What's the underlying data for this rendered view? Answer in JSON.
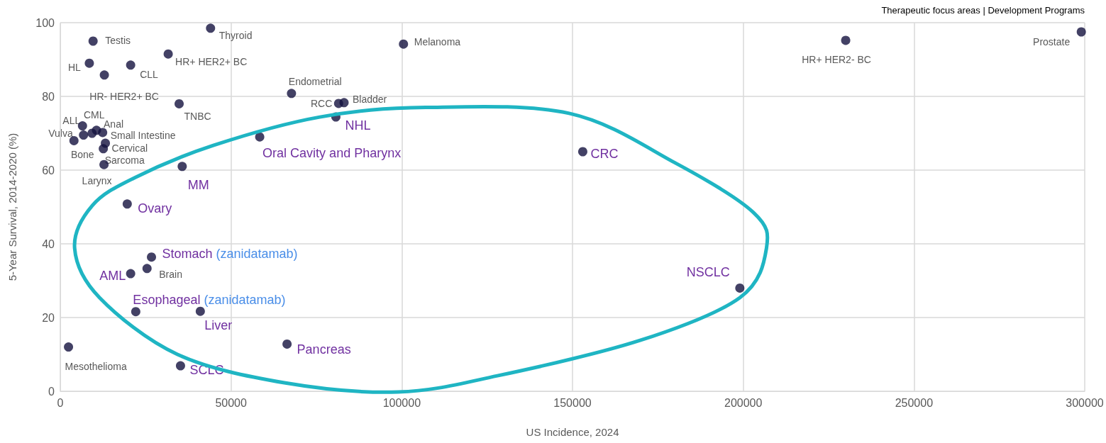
{
  "chart_data": {
    "type": "scatter",
    "xlabel": "US Incidence, 2024",
    "ylabel": "5-Year Survival, 2014-2020 (%)",
    "xlim": [
      0,
      300000
    ],
    "xticks": [
      0,
      50000,
      100000,
      150000,
      200000,
      250000,
      300000
    ],
    "ylim": [
      0,
      100
    ],
    "yticks": [
      0,
      20,
      40,
      60,
      80,
      100
    ],
    "grid": true,
    "marker": "circle",
    "series": [
      {
        "color": "#14123f",
        "x": [
          9600,
          44000,
          8500,
          31600,
          20600,
          12900,
          34800,
          6500,
          9300,
          10600,
          6800,
          4000,
          12400,
          13200,
          12600,
          12800,
          67700,
          81500,
          83100,
          100500,
          230000,
          299000,
          25400,
          2400
        ],
        "values": [
          95,
          98.5,
          89,
          91.5,
          88.5,
          85.8,
          78,
          72,
          70,
          70.8,
          69.5,
          68,
          70.2,
          67.3,
          65.8,
          61.5,
          80.8,
          78.1,
          78.3,
          94.2,
          95.2,
          97.5,
          33.3,
          12
        ]
      },
      {
        "color": "#14123f",
        "x": [
          35700,
          58400,
          80700,
          153000,
          199000,
          19600,
          26700,
          20600,
          22100,
          41000,
          66400,
          35200
        ],
        "values": [
          61,
          69,
          74.4,
          65,
          28,
          50.8,
          36.4,
          31.9,
          21.6,
          21.7,
          12.8,
          6.9
        ]
      }
    ],
    "annotations": [
      "Therapeutic focus areas",
      "|",
      "Development Programs",
      {
        "text": "Testis",
        "x": 9600,
        "y": 95
      },
      {
        "text": "Thyroid",
        "x": 44000,
        "y": 98.5
      },
      {
        "text": "HL",
        "x": 8500,
        "y": 89
      },
      {
        "text": "HR+ HER2+ BC",
        "x": 31600,
        "y": 91.5
      },
      {
        "text": "CLL",
        "x": 20600,
        "y": 88.5
      },
      {
        "text": "HR- HER2+ BC",
        "x": 12900,
        "y": 85.8
      },
      {
        "text": "TNBC",
        "x": 34800,
        "y": 78
      },
      {
        "text": "ALL",
        "x": 6500,
        "y": 72
      },
      {
        "text": "CML",
        "x": 9300,
        "y": 70
      },
      {
        "text": "Anal",
        "x": 10600,
        "y": 70.8
      },
      {
        "text": "Vulva",
        "x": 6800,
        "y": 69.5
      },
      {
        "text": "Bone",
        "x": 4000,
        "y": 68
      },
      {
        "text": "Small Intestine",
        "x": 12400,
        "y": 70.2
      },
      {
        "text": "Cervical",
        "x": 13200,
        "y": 67.3
      },
      {
        "text": "Sarcoma",
        "x": 12600,
        "y": 65.8
      },
      {
        "text": "Larynx",
        "x": 12800,
        "y": 61.5
      },
      {
        "text": "Endometrial",
        "x": 67700,
        "y": 80.8
      },
      {
        "text": "RCC",
        "x": 81500,
        "y": 78.1
      },
      {
        "text": "Bladder",
        "x": 83100,
        "y": 78.3
      },
      {
        "text": "Melanoma",
        "x": 100500,
        "y": 94.2
      },
      {
        "text": "HR+ HER2- BC",
        "x": 230000,
        "y": 95.2
      },
      {
        "text": "Prostate",
        "x": 299000,
        "y": 97.5
      },
      {
        "text": "Brain",
        "x": 25400,
        "y": 33.3
      },
      {
        "text": "Mesothelioma",
        "x": 2400,
        "y": 12
      },
      {
        "text": "MM",
        "x": 35700,
        "y": 61
      },
      {
        "text": "Oral Cavity and Pharynx",
        "x": 58400,
        "y": 69
      },
      {
        "text": "NHL",
        "x": 80700,
        "y": 74.4
      },
      {
        "text": "CRC",
        "x": 153000,
        "y": 65
      },
      {
        "text": "NSCLC",
        "x": 199000,
        "y": 28
      },
      {
        "text": "Ovary",
        "x": 19600,
        "y": 50.8
      },
      {
        "text": "Stomach (zanidatamab)",
        "x": 26700,
        "y": 36.4
      },
      {
        "text": "AML",
        "x": 20600,
        "y": 31.9
      },
      {
        "text": "Esophageal (zanidatamab)",
        "x": 22100,
        "y": 21.6
      },
      {
        "text": "Liver",
        "x": 41000,
        "y": 21.7
      },
      {
        "text": "Pancreas",
        "x": 66400,
        "y": 12.8
      },
      {
        "text": "SCLC",
        "x": 35200,
        "y": 6.9
      }
    ]
  }
}
